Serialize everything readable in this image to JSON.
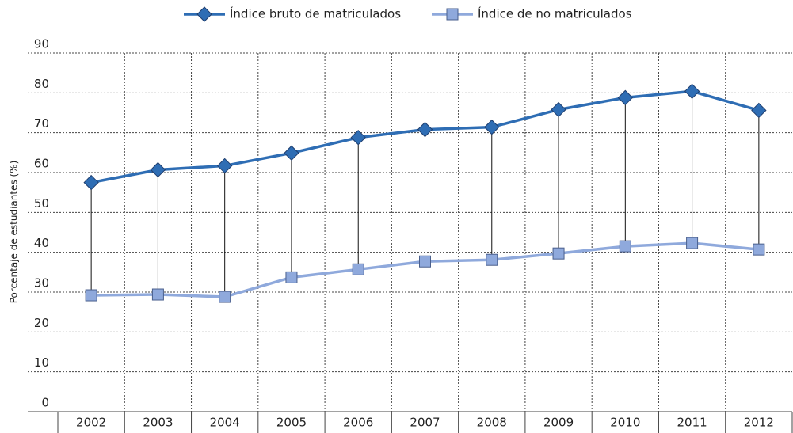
{
  "chart_data": {
    "type": "line",
    "ylabel": "Porcentaje de estudiantes (%)",
    "categories": [
      "2002",
      "2003",
      "2004",
      "2005",
      "2006",
      "2007",
      "2008",
      "2009",
      "2010",
      "2011",
      "2012"
    ],
    "series": [
      {
        "name": "Índice bruto de matriculados",
        "color": "#2e6db4",
        "marker": "diamond",
        "values": [
          57.5,
          60.7,
          61.7,
          64.9,
          68.8,
          70.8,
          71.4,
          75.8,
          78.8,
          80.4,
          75.6
        ]
      },
      {
        "name": "Índice de no matriculados",
        "color": "#8fa9dc",
        "marker": "square",
        "values": [
          29.2,
          29.4,
          28.8,
          33.7,
          35.7,
          37.7,
          38.1,
          39.7,
          41.5,
          42.3,
          40.7
        ]
      }
    ],
    "ylim": [
      0,
      90
    ],
    "yticks": [
      0,
      10,
      20,
      30,
      40,
      50,
      60,
      70,
      80,
      90
    ],
    "grid": true,
    "legend": "top",
    "high_low_lines": true
  }
}
